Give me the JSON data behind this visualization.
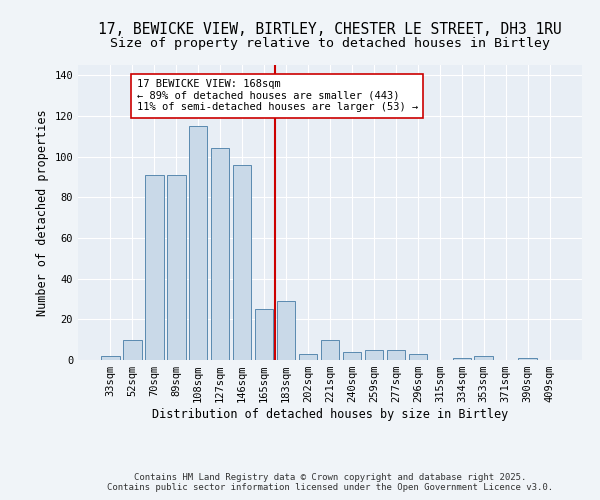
{
  "title_line1": "17, BEWICKE VIEW, BIRTLEY, CHESTER LE STREET, DH3 1RU",
  "title_line2": "Size of property relative to detached houses in Birtley",
  "xlabel": "Distribution of detached houses by size in Birtley",
  "ylabel": "Number of detached properties",
  "categories": [
    "33sqm",
    "52sqm",
    "70sqm",
    "89sqm",
    "108sqm",
    "127sqm",
    "146sqm",
    "165sqm",
    "183sqm",
    "202sqm",
    "221sqm",
    "240sqm",
    "259sqm",
    "277sqm",
    "296sqm",
    "315sqm",
    "334sqm",
    "353sqm",
    "371sqm",
    "390sqm",
    "409sqm"
  ],
  "values": [
    2,
    10,
    91,
    91,
    115,
    104,
    96,
    25,
    29,
    3,
    10,
    4,
    5,
    5,
    3,
    0,
    1,
    2,
    0,
    1,
    0
  ],
  "bar_color": "#c9d9e8",
  "bar_edge_color": "#5a8ab0",
  "reference_line_color": "#cc0000",
  "annotation_text": "17 BEWICKE VIEW: 168sqm\n← 89% of detached houses are smaller (443)\n11% of semi-detached houses are larger (53) →",
  "annotation_box_color": "#ffffff",
  "annotation_box_edge_color": "#cc0000",
  "ylim": [
    0,
    145
  ],
  "yticks": [
    0,
    20,
    40,
    60,
    80,
    100,
    120,
    140
  ],
  "ax_background_color": "#e8eef5",
  "fig_background_color": "#f0f4f8",
  "footer_text": "Contains HM Land Registry data © Crown copyright and database right 2025.\nContains public sector information licensed under the Open Government Licence v3.0.",
  "title_fontsize": 10.5,
  "subtitle_fontsize": 9.5,
  "label_fontsize": 8.5,
  "tick_fontsize": 7.5,
  "annotation_fontsize": 7.5,
  "footer_fontsize": 6.5
}
